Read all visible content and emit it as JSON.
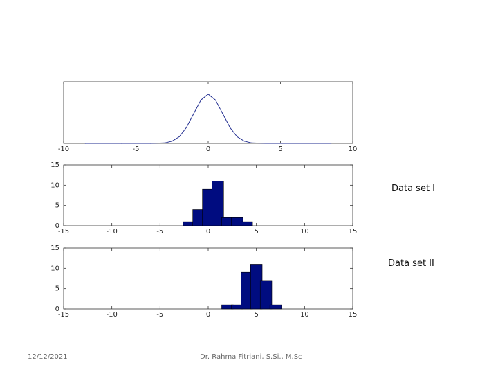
{
  "chart_data": [
    {
      "type": "line",
      "title": "",
      "xlabel": "",
      "ylabel": "",
      "xlim": [
        -10,
        10
      ],
      "ylim": [
        0,
        0.5
      ],
      "xticks": [
        -10,
        -5,
        0,
        5,
        10
      ],
      "yticks": [],
      "grid": false,
      "series": [
        {
          "color": "#1f2b8f",
          "x": [
            -8.5,
            -6,
            -4,
            -3,
            -2.5,
            -2,
            -1.5,
            -1,
            -0.5,
            0,
            0.5,
            1,
            1.5,
            2,
            2.5,
            3,
            4,
            6,
            8.5
          ],
          "y": [
            0,
            0,
            0,
            0.004,
            0.018,
            0.054,
            0.13,
            0.242,
            0.352,
            0.4,
            0.352,
            0.242,
            0.13,
            0.054,
            0.018,
            0.004,
            0,
            0,
            0
          ]
        }
      ]
    },
    {
      "type": "bar",
      "title": "",
      "xlabel": "",
      "ylabel": "",
      "xlim": [
        -15,
        15
      ],
      "ylim": [
        0,
        15
      ],
      "xticks": [
        -15,
        -10,
        -5,
        0,
        5,
        10,
        15
      ],
      "yticks": [
        0,
        5,
        10,
        15
      ],
      "grid": false,
      "color": "#000c80",
      "bin_width": 1.2,
      "bin_centers": [
        -2,
        -1,
        0,
        1,
        2,
        3,
        4
      ],
      "values": [
        1,
        4,
        9,
        11,
        2,
        2,
        1
      ],
      "annotation": "Data set I"
    },
    {
      "type": "bar",
      "title": "",
      "xlabel": "",
      "ylabel": "",
      "xlim": [
        -15,
        15
      ],
      "ylim": [
        0,
        15
      ],
      "xticks": [
        -15,
        -10,
        -5,
        0,
        5,
        10,
        15
      ],
      "yticks": [
        0,
        5,
        10,
        15
      ],
      "grid": false,
      "color": "#000c80",
      "bin_width": 1.2,
      "bin_centers": [
        2,
        3,
        4,
        5,
        6,
        7
      ],
      "values": [
        1,
        1,
        9,
        11,
        7,
        1
      ],
      "annotation": "Data set II"
    }
  ],
  "footer": {
    "date": "12/12/2021",
    "author": "Dr. Rahma Fitriani, S.Si., M.Sc"
  }
}
